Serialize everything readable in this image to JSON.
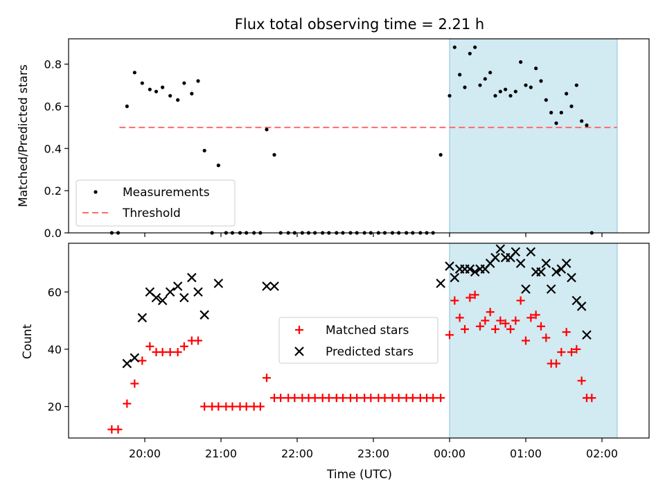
{
  "chart_data": [
    {
      "type": "scatter",
      "title": "Flux total observing time = 2.21 h",
      "xlabel": "",
      "ylabel": "Matched/Predicted stars",
      "ylim": [
        0,
        0.92
      ],
      "yticks": [
        "0.0",
        "0.2",
        "0.4",
        "0.6",
        "0.8"
      ],
      "yticks_values": [
        0,
        0.2,
        0.4,
        0.6,
        0.8
      ],
      "shaded_region": {
        "x": [
          "00:00",
          "02:12"
        ],
        "color": "#add8e6"
      },
      "threshold": {
        "name": "Threshold",
        "value": 0.5,
        "x": [
          "19:40",
          "02:12"
        ],
        "color": "#ff6b6b"
      },
      "legend": {
        "position": "lower-left",
        "entries": [
          "Measurements",
          "Threshold"
        ]
      },
      "series": [
        {
          "name": "Measurements",
          "color": "#000000",
          "points": [
            [
              "19:34",
              0
            ],
            [
              "19:39",
              0
            ],
            [
              "19:46",
              0.6
            ],
            [
              "19:52",
              0.76
            ],
            [
              "19:58",
              0.71
            ],
            [
              "20:04",
              0.68
            ],
            [
              "20:09",
              0.67
            ],
            [
              "20:14",
              0.69
            ],
            [
              "20:20",
              0.65
            ],
            [
              "20:26",
              0.63
            ],
            [
              "20:31",
              0.71
            ],
            [
              "20:37",
              0.66
            ],
            [
              "20:42",
              0.72
            ],
            [
              "20:47",
              0.39
            ],
            [
              "20:53",
              0
            ],
            [
              "20:58",
              0.32
            ],
            [
              "21:04",
              0
            ],
            [
              "21:09",
              0
            ],
            [
              "21:15",
              0
            ],
            [
              "21:20",
              0
            ],
            [
              "21:26",
              0
            ],
            [
              "21:31",
              0
            ],
            [
              "21:36",
              0.49
            ],
            [
              "21:42",
              0.37
            ],
            [
              "21:47",
              0
            ],
            [
              "21:53",
              0
            ],
            [
              "21:58",
              0
            ],
            [
              "22:04",
              0
            ],
            [
              "22:09",
              0
            ],
            [
              "22:14",
              0
            ],
            [
              "22:20",
              0
            ],
            [
              "22:25",
              0
            ],
            [
              "22:31",
              0
            ],
            [
              "22:36",
              0
            ],
            [
              "22:42",
              0
            ],
            [
              "22:47",
              0
            ],
            [
              "22:53",
              0
            ],
            [
              "22:58",
              0
            ],
            [
              "23:04",
              0
            ],
            [
              "23:09",
              0
            ],
            [
              "23:15",
              0
            ],
            [
              "23:20",
              0
            ],
            [
              "23:26",
              0
            ],
            [
              "23:31",
              0
            ],
            [
              "23:37",
              0
            ],
            [
              "23:42",
              0
            ],
            [
              "23:47",
              0
            ],
            [
              "23:53",
              0.37
            ],
            [
              "00:00",
              0.65
            ],
            [
              "00:04",
              0.88
            ],
            [
              "00:08",
              0.75
            ],
            [
              "00:12",
              0.69
            ],
            [
              "00:16",
              0.85
            ],
            [
              "00:20",
              0.88
            ],
            [
              "00:24",
              0.7
            ],
            [
              "00:28",
              0.73
            ],
            [
              "00:32",
              0.76
            ],
            [
              "00:36",
              0.65
            ],
            [
              "00:40",
              0.67
            ],
            [
              "00:44",
              0.68
            ],
            [
              "00:48",
              0.65
            ],
            [
              "00:52",
              0.67
            ],
            [
              "00:56",
              0.81
            ],
            [
              "01:00",
              0.7
            ],
            [
              "01:04",
              0.69
            ],
            [
              "01:08",
              0.78
            ],
            [
              "01:12",
              0.72
            ],
            [
              "01:16",
              0.63
            ],
            [
              "01:20",
              0.57
            ],
            [
              "01:24",
              0.52
            ],
            [
              "01:28",
              0.57
            ],
            [
              "01:32",
              0.66
            ],
            [
              "01:36",
              0.6
            ],
            [
              "01:40",
              0.7
            ],
            [
              "01:44",
              0.53
            ],
            [
              "01:48",
              0.51
            ],
            [
              "01:52",
              0
            ]
          ]
        }
      ]
    },
    {
      "type": "scatter",
      "title": "",
      "xlabel": "Time (UTC)",
      "ylabel": "Count",
      "ylim": [
        9,
        77
      ],
      "yticks": [
        "20",
        "40",
        "60"
      ],
      "yticks_values": [
        20,
        40,
        60
      ],
      "xticks": [
        "20:00",
        "21:00",
        "22:00",
        "23:00",
        "00:00",
        "01:00",
        "02:00"
      ],
      "shaded_region": {
        "x": [
          "00:00",
          "02:12"
        ],
        "color": "#add8e6"
      },
      "legend": {
        "position": "center-right",
        "entries": [
          "Matched stars",
          "Predicted stars"
        ]
      },
      "series": [
        {
          "name": "Matched stars",
          "color": "#ff0000",
          "marker": "plus",
          "points": [
            [
              "19:34",
              12
            ],
            [
              "19:39",
              12
            ],
            [
              "19:46",
              21
            ],
            [
              "19:52",
              28
            ],
            [
              "19:58",
              36
            ],
            [
              "20:04",
              41
            ],
            [
              "20:09",
              39
            ],
            [
              "20:14",
              39
            ],
            [
              "20:20",
              39
            ],
            [
              "20:26",
              39
            ],
            [
              "20:31",
              41
            ],
            [
              "20:37",
              43
            ],
            [
              "20:42",
              43
            ],
            [
              "20:47",
              20
            ],
            [
              "20:53",
              20
            ],
            [
              "20:58",
              20
            ],
            [
              "21:04",
              20
            ],
            [
              "21:09",
              20
            ],
            [
              "21:15",
              20
            ],
            [
              "21:20",
              20
            ],
            [
              "21:26",
              20
            ],
            [
              "21:31",
              20
            ],
            [
              "21:36",
              30
            ],
            [
              "21:42",
              23
            ],
            [
              "21:47",
              23
            ],
            [
              "21:53",
              23
            ],
            [
              "21:58",
              23
            ],
            [
              "22:04",
              23
            ],
            [
              "22:09",
              23
            ],
            [
              "22:14",
              23
            ],
            [
              "22:20",
              23
            ],
            [
              "22:25",
              23
            ],
            [
              "22:31",
              23
            ],
            [
              "22:36",
              23
            ],
            [
              "22:42",
              23
            ],
            [
              "22:47",
              23
            ],
            [
              "22:53",
              23
            ],
            [
              "22:58",
              23
            ],
            [
              "23:04",
              23
            ],
            [
              "23:09",
              23
            ],
            [
              "23:15",
              23
            ],
            [
              "23:20",
              23
            ],
            [
              "23:26",
              23
            ],
            [
              "23:31",
              23
            ],
            [
              "23:37",
              23
            ],
            [
              "23:42",
              23
            ],
            [
              "23:47",
              23
            ],
            [
              "23:53",
              23
            ],
            [
              "00:00",
              45
            ],
            [
              "00:04",
              57
            ],
            [
              "00:08",
              51
            ],
            [
              "00:12",
              47
            ],
            [
              "00:16",
              58
            ],
            [
              "00:20",
              59
            ],
            [
              "00:24",
              48
            ],
            [
              "00:28",
              50
            ],
            [
              "00:32",
              53
            ],
            [
              "00:36",
              47
            ],
            [
              "00:40",
              50
            ],
            [
              "00:44",
              49
            ],
            [
              "00:48",
              47
            ],
            [
              "00:52",
              50
            ],
            [
              "00:56",
              57
            ],
            [
              "01:00",
              43
            ],
            [
              "01:04",
              51
            ],
            [
              "01:08",
              52
            ],
            [
              "01:12",
              48
            ],
            [
              "01:16",
              44
            ],
            [
              "01:20",
              35
            ],
            [
              "01:24",
              35
            ],
            [
              "01:28",
              39
            ],
            [
              "01:32",
              46
            ],
            [
              "01:36",
              39
            ],
            [
              "01:40",
              40
            ],
            [
              "01:44",
              29
            ],
            [
              "01:48",
              23
            ],
            [
              "01:52",
              23
            ]
          ]
        },
        {
          "name": "Predicted stars",
          "color": "#000000",
          "marker": "x",
          "points": [
            [
              "19:46",
              35
            ],
            [
              "19:52",
              37
            ],
            [
              "19:58",
              51
            ],
            [
              "20:04",
              60
            ],
            [
              "20:09",
              58
            ],
            [
              "20:14",
              57
            ],
            [
              "20:20",
              60
            ],
            [
              "20:26",
              62
            ],
            [
              "20:31",
              58
            ],
            [
              "20:37",
              65
            ],
            [
              "20:42",
              60
            ],
            [
              "20:47",
              52
            ],
            [
              "20:58",
              63
            ],
            [
              "21:36",
              62
            ],
            [
              "21:42",
              62
            ],
            [
              "23:53",
              63
            ],
            [
              "00:00",
              69
            ],
            [
              "00:04",
              65
            ],
            [
              "00:08",
              68
            ],
            [
              "00:12",
              68
            ],
            [
              "00:16",
              68
            ],
            [
              "00:20",
              67
            ],
            [
              "00:24",
              68
            ],
            [
              "00:28",
              68
            ],
            [
              "00:32",
              70
            ],
            [
              "00:36",
              72
            ],
            [
              "00:40",
              75
            ],
            [
              "00:44",
              72
            ],
            [
              "00:48",
              72
            ],
            [
              "00:52",
              74
            ],
            [
              "00:56",
              70
            ],
            [
              "01:00",
              61
            ],
            [
              "01:04",
              74
            ],
            [
              "01:08",
              67
            ],
            [
              "01:12",
              67
            ],
            [
              "01:16",
              70
            ],
            [
              "01:20",
              61
            ],
            [
              "01:24",
              67
            ],
            [
              "01:28",
              68
            ],
            [
              "01:32",
              70
            ],
            [
              "01:36",
              65
            ],
            [
              "01:40",
              57
            ],
            [
              "01:44",
              55
            ],
            [
              "01:48",
              45
            ]
          ]
        }
      ]
    }
  ]
}
